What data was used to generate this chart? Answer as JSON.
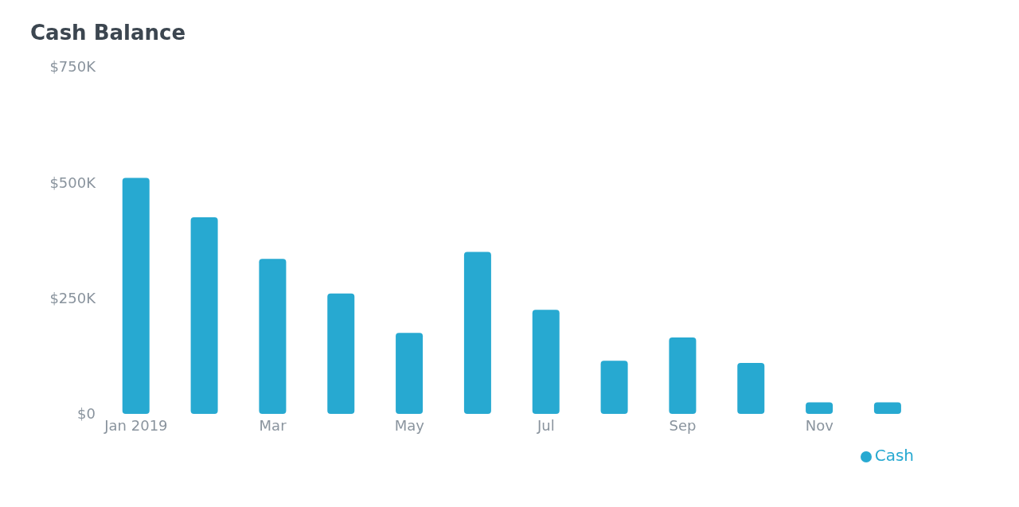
{
  "chart_data": {
    "type": "bar",
    "title": "Cash Balance",
    "categories": [
      "Jan 2019",
      null,
      "Mar",
      null,
      "May",
      null,
      "Jul",
      null,
      "Sep",
      null,
      "Nov",
      null
    ],
    "series": [
      {
        "name": "Cash",
        "color": "#27a9d1",
        "values": [
          510000,
          425000,
          335000,
          260000,
          175000,
          350000,
          225000,
          115000,
          165000,
          110000,
          25000,
          25000
        ]
      }
    ],
    "ylim": [
      0,
      750000
    ],
    "yticks": [
      {
        "value": 0,
        "label": "$0"
      },
      {
        "value": 250000,
        "label": "$250K"
      },
      {
        "value": 500000,
        "label": "$500K"
      },
      {
        "value": 750000,
        "label": "$750K"
      }
    ],
    "grid": false,
    "legend": "bottom right"
  }
}
